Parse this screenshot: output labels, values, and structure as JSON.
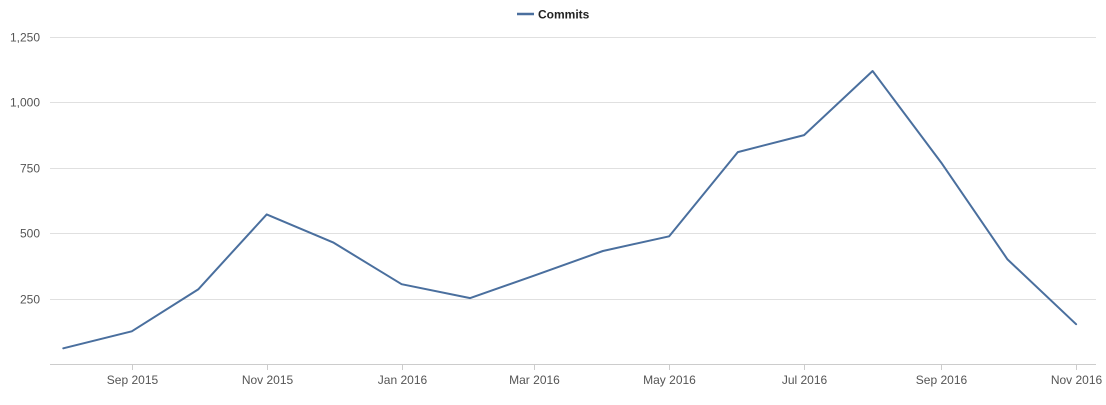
{
  "chart_data": {
    "type": "line",
    "title": "",
    "xlabel": "",
    "ylabel": "",
    "legend": {
      "position": "top-center"
    },
    "grid": {
      "y": true,
      "x": false
    },
    "ylim": [
      0,
      1250
    ],
    "y_ticks": [
      {
        "value": 250,
        "label": "250"
      },
      {
        "value": 500,
        "label": "500"
      },
      {
        "value": 750,
        "label": "750"
      },
      {
        "value": 1000,
        "label": "1,000"
      },
      {
        "value": 1250,
        "label": "1,250"
      }
    ],
    "xlim": [
      "2015-07-26",
      "2016-11-10"
    ],
    "x_ticks": [
      {
        "value": "2015-09-01",
        "label": "Sep 2015"
      },
      {
        "value": "2015-11-01",
        "label": "Nov 2015"
      },
      {
        "value": "2016-01-01",
        "label": "Jan 2016"
      },
      {
        "value": "2016-03-01",
        "label": "Mar 2016"
      },
      {
        "value": "2016-05-01",
        "label": "May 2016"
      },
      {
        "value": "2016-07-01",
        "label": "Jul 2016"
      },
      {
        "value": "2016-09-01",
        "label": "Sep 2016"
      },
      {
        "value": "2016-11-01",
        "label": "Nov 2016"
      }
    ],
    "series": [
      {
        "name": "Commits",
        "color": "#4a6f9e",
        "points": [
          {
            "x": "2015-08-01",
            "y": 60
          },
          {
            "x": "2015-09-01",
            "y": 125
          },
          {
            "x": "2015-10-01",
            "y": 285
          },
          {
            "x": "2015-11-01",
            "y": 572
          },
          {
            "x": "2015-12-01",
            "y": 465
          },
          {
            "x": "2016-01-01",
            "y": 305
          },
          {
            "x": "2016-02-01",
            "y": 252
          },
          {
            "x": "2016-03-01",
            "y": 338
          },
          {
            "x": "2016-04-01",
            "y": 432
          },
          {
            "x": "2016-05-01",
            "y": 488
          },
          {
            "x": "2016-06-01",
            "y": 810
          },
          {
            "x": "2016-07-01",
            "y": 875
          },
          {
            "x": "2016-08-01",
            "y": 1120
          },
          {
            "x": "2016-09-01",
            "y": 770
          },
          {
            "x": "2016-10-01",
            "y": 400
          },
          {
            "x": "2016-11-01",
            "y": 152
          }
        ]
      }
    ]
  }
}
